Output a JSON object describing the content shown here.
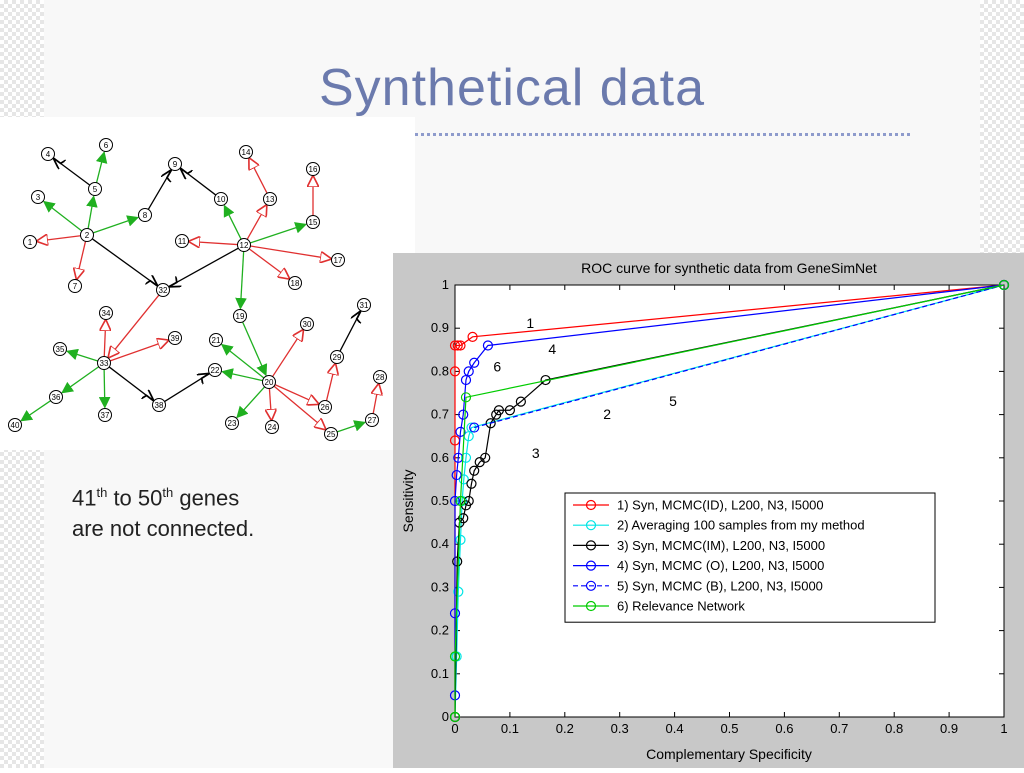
{
  "slide": {
    "title": "Synthetical data",
    "note": {
      "n1": "41",
      "sup1": "th",
      "mid": " to 50",
      "sup2": "th",
      "end": " genes",
      "line2": "are not connected."
    }
  },
  "network": {
    "nodes": [
      "1",
      "2",
      "3",
      "4",
      "5",
      "6",
      "7",
      "8",
      "9",
      "10",
      "11",
      "12",
      "13",
      "14",
      "15",
      "16",
      "17",
      "18",
      "19",
      "20",
      "21",
      "22",
      "23",
      "24",
      "25",
      "26",
      "27",
      "28",
      "29",
      "30",
      "31",
      "32",
      "33",
      "34",
      "35",
      "36",
      "37",
      "38",
      "39",
      "40"
    ],
    "edge_colors": {
      "red": "#e03030",
      "green": "#20b020",
      "black": "#000000"
    }
  },
  "chart_data": {
    "type": "line",
    "title": "ROC curve for synthetic data from GeneSimNet",
    "xlabel": "Complementary Specificity",
    "ylabel": "Sensitivity",
    "xlim": [
      0,
      1
    ],
    "ylim": [
      0,
      1
    ],
    "xticks": [
      "0",
      "0.1",
      "0.2",
      "0.3",
      "0.4",
      "0.5",
      "0.6",
      "0.7",
      "0.8",
      "0.9",
      "1"
    ],
    "yticks": [
      "0",
      "0.1",
      "0.2",
      "0.3",
      "0.4",
      "0.5",
      "0.6",
      "0.7",
      "0.8",
      "0.9",
      "1"
    ],
    "grid": false,
    "legend_position": "lower-right",
    "series": [
      {
        "name": "1) Syn, MCMC(ID), L200, N3, I5000",
        "color": "#ff0000",
        "dash": false,
        "x": [
          0,
          0,
          0,
          0,
          0.005,
          0.01,
          0.032,
          1
        ],
        "y": [
          0,
          0.64,
          0.8,
          0.86,
          0.86,
          0.86,
          0.88,
          1
        ]
      },
      {
        "name": "2) Averaging 100 samples from my method",
        "color": "#00e5e5",
        "dash": false,
        "x": [
          0,
          0.003,
          0.006,
          0.01,
          0.013,
          0.016,
          0.02,
          0.025,
          0.03,
          1
        ],
        "y": [
          0,
          0.14,
          0.29,
          0.41,
          0.5,
          0.55,
          0.6,
          0.65,
          0.67,
          1
        ]
      },
      {
        "name": "3) Syn, MCMC(IM), L200, N3, I5000",
        "color": "#000000",
        "dash": false,
        "x": [
          0,
          0.004,
          0.008,
          0.015,
          0.02,
          0.025,
          0.03,
          0.035,
          0.045,
          0.055,
          0.065,
          0.075,
          0.08,
          0.1,
          0.12,
          0.165,
          1
        ],
        "y": [
          0,
          0.36,
          0.45,
          0.46,
          0.49,
          0.5,
          0.54,
          0.57,
          0.59,
          0.6,
          0.68,
          0.7,
          0.71,
          0.71,
          0.73,
          0.78,
          1
        ]
      },
      {
        "name": "4) Syn, MCMC (O), L200, N3, I5000",
        "color": "#0000ff",
        "dash": false,
        "x": [
          0,
          0,
          0,
          0.003,
          0.006,
          0.01,
          0.015,
          0.02,
          0.025,
          0.035,
          0.06,
          1
        ],
        "y": [
          0.05,
          0.24,
          0.5,
          0.56,
          0.6,
          0.66,
          0.7,
          0.78,
          0.8,
          0.82,
          0.86,
          1
        ]
      },
      {
        "name": "5) Syn, MCMC (B), L200, N3, I5000",
        "color": "#0000ff",
        "dash": true,
        "x": [
          0.035,
          1
        ],
        "y": [
          0.67,
          1
        ]
      },
      {
        "name": "6) Relevance Network",
        "color": "#00cc00",
        "dash": false,
        "x": [
          0,
          0,
          0.01,
          0.02,
          1
        ],
        "y": [
          0,
          0.14,
          0.5,
          0.74,
          1
        ]
      }
    ],
    "annotations": [
      {
        "text": "1",
        "x": 0.13,
        "y": 0.9
      },
      {
        "text": "4",
        "x": 0.17,
        "y": 0.84
      },
      {
        "text": "6",
        "x": 0.07,
        "y": 0.8
      },
      {
        "text": "5",
        "x": 0.39,
        "y": 0.72
      },
      {
        "text": "2",
        "x": 0.27,
        "y": 0.69
      },
      {
        "text": "3",
        "x": 0.14,
        "y": 0.6
      }
    ]
  }
}
